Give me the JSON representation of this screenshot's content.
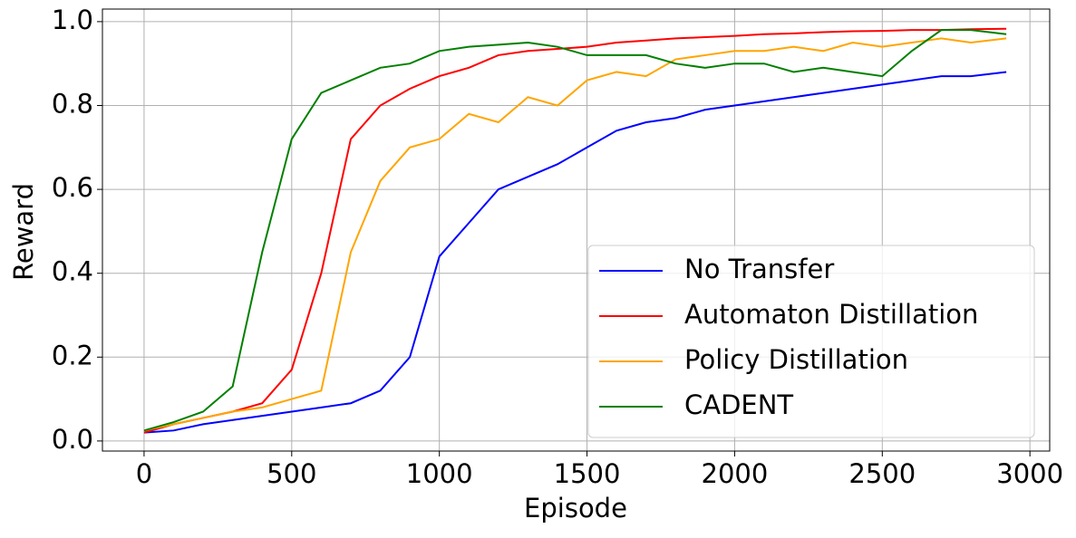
{
  "chart_data": {
    "type": "line",
    "x_label": "Episode",
    "y_label": "Reward",
    "x": [
      0,
      100,
      200,
      300,
      400,
      500,
      600,
      700,
      800,
      900,
      1000,
      1100,
      1200,
      1300,
      1400,
      1500,
      1600,
      1700,
      1800,
      1900,
      2000,
      2100,
      2200,
      2300,
      2400,
      2500,
      2600,
      2700,
      2800,
      2920
    ],
    "series": [
      {
        "name": "No Transfer",
        "color": "#0000ff",
        "values": [
          0.02,
          0.025,
          0.04,
          0.05,
          0.06,
          0.07,
          0.08,
          0.09,
          0.12,
          0.2,
          0.44,
          0.52,
          0.6,
          0.63,
          0.66,
          0.7,
          0.74,
          0.76,
          0.77,
          0.79,
          0.8,
          0.81,
          0.82,
          0.83,
          0.84,
          0.85,
          0.86,
          0.87,
          0.87,
          0.88
        ]
      },
      {
        "name": "Automaton Distillation",
        "color": "#ff0000",
        "values": [
          0.02,
          0.04,
          0.055,
          0.07,
          0.09,
          0.17,
          0.4,
          0.72,
          0.8,
          0.84,
          0.87,
          0.89,
          0.92,
          0.93,
          0.935,
          0.94,
          0.95,
          0.955,
          0.96,
          0.963,
          0.966,
          0.97,
          0.972,
          0.975,
          0.977,
          0.978,
          0.98,
          0.98,
          0.982,
          0.983
        ]
      },
      {
        "name": "Policy Distillation",
        "color": "#ffa500",
        "values": [
          0.025,
          0.04,
          0.055,
          0.07,
          0.08,
          0.1,
          0.12,
          0.45,
          0.62,
          0.7,
          0.72,
          0.78,
          0.76,
          0.82,
          0.8,
          0.86,
          0.88,
          0.87,
          0.91,
          0.92,
          0.93,
          0.93,
          0.94,
          0.93,
          0.95,
          0.94,
          0.95,
          0.96,
          0.95,
          0.96
        ]
      },
      {
        "name": "CADENT",
        "color": "#008000",
        "values": [
          0.025,
          0.045,
          0.07,
          0.13,
          0.45,
          0.72,
          0.83,
          0.86,
          0.89,
          0.9,
          0.93,
          0.94,
          0.945,
          0.95,
          0.94,
          0.92,
          0.92,
          0.92,
          0.9,
          0.89,
          0.9,
          0.9,
          0.88,
          0.89,
          0.88,
          0.87,
          0.93,
          0.98,
          0.98,
          0.97
        ]
      }
    ],
    "xlim": [
      -141,
      3067
    ],
    "xticks": [
      0,
      500,
      1000,
      1500,
      2000,
      2500,
      3000
    ],
    "ylim": [
      -0.024,
      1.03
    ],
    "yticks": [
      0.0,
      0.2,
      0.4,
      0.6,
      0.8,
      1.0
    ],
    "grid": true,
    "legend": "lower right"
  }
}
